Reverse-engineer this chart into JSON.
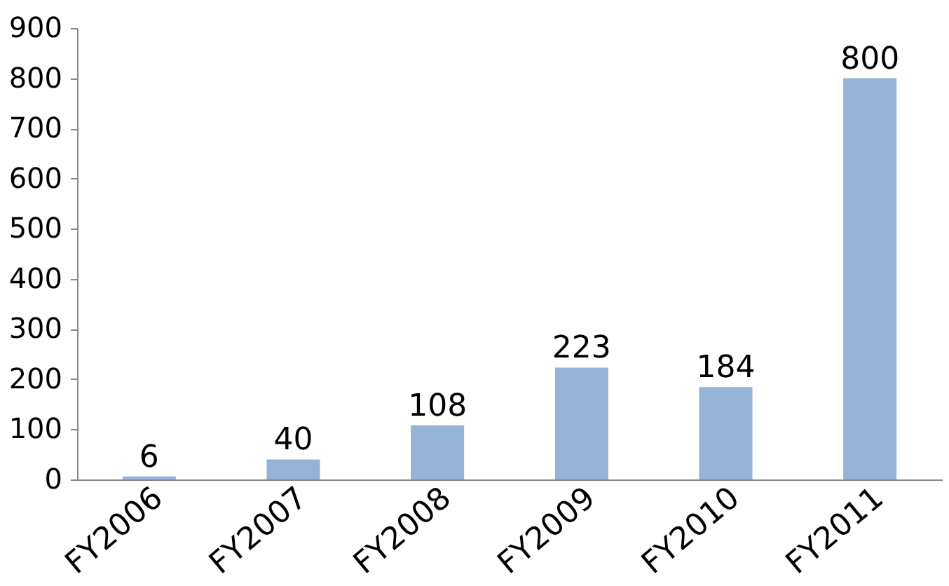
{
  "chart_data": {
    "type": "bar",
    "categories": [
      "FY2006",
      "FY2007",
      "FY2008",
      "FY2009",
      "FY2010",
      "FY2011"
    ],
    "values": [
      6,
      40,
      108,
      223,
      184,
      800
    ],
    "color": "#95b3d7",
    "ylim": [
      0,
      900
    ],
    "yticks": [
      0,
      100,
      200,
      300,
      400,
      500,
      600,
      700,
      800,
      900
    ],
    "grid": false,
    "data_labels": true
  }
}
